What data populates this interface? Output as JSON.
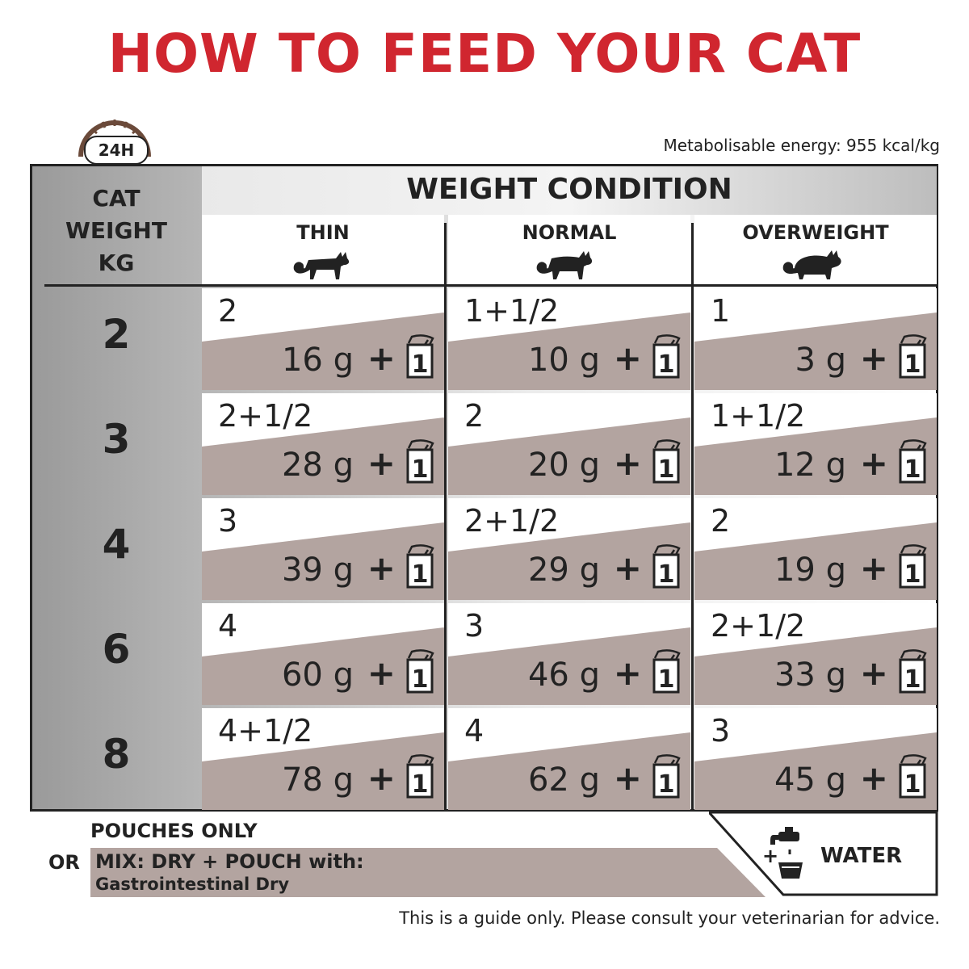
{
  "title": "HOW TO FEED YOUR CAT",
  "energy": "Metabolisable energy: 955 kcal/kg",
  "clock_label": "24H",
  "cat_weight_header": [
    "CAT",
    "WEIGHT",
    "KG"
  ],
  "weight_condition_title": "WEIGHT CONDITION",
  "columns": [
    {
      "label": "THIN",
      "icon": "thin-cat-icon"
    },
    {
      "label": "NORMAL",
      "icon": "normal-cat-icon"
    },
    {
      "label": "OVERWEIGHT",
      "icon": "overweight-cat-icon"
    }
  ],
  "rows": [
    {
      "weight": "2",
      "cells": [
        {
          "pouches": "2",
          "grams": "16 g"
        },
        {
          "pouches": "1+1/2",
          "grams": "10 g"
        },
        {
          "pouches": "1",
          "grams": "3 g"
        }
      ]
    },
    {
      "weight": "3",
      "cells": [
        {
          "pouches": "2+1/2",
          "grams": "28 g"
        },
        {
          "pouches": "2",
          "grams": "20 g"
        },
        {
          "pouches": "1+1/2",
          "grams": "12 g"
        }
      ]
    },
    {
      "weight": "4",
      "cells": [
        {
          "pouches": "3",
          "grams": "39 g"
        },
        {
          "pouches": "2+1/2",
          "grams": "29 g"
        },
        {
          "pouches": "2",
          "grams": "19 g"
        }
      ]
    },
    {
      "weight": "6",
      "cells": [
        {
          "pouches": "4",
          "grams": "60 g"
        },
        {
          "pouches": "3",
          "grams": "46 g"
        },
        {
          "pouches": "2+1/2",
          "grams": "33 g"
        }
      ]
    },
    {
      "weight": "8",
      "cells": [
        {
          "pouches": "4+1/2",
          "grams": "78 g"
        },
        {
          "pouches": "4",
          "grams": "62 g"
        },
        {
          "pouches": "3",
          "grams": "45 g"
        }
      ]
    }
  ],
  "plus_sign": "+",
  "pouch_icon_label": "1",
  "pouches_only": "POUCHES ONLY",
  "or": "OR",
  "mix_line1": "MIX: DRY + POUCH with:",
  "mix_line2": "Gastrointestinal Dry",
  "water_plus": "+",
  "water_label": "WATER",
  "disclaimer": "This is a guide only. Please consult your veterinarian for advice.",
  "colors": {
    "title_red": "#d0262f",
    "band_taupe": "#b3a4a0",
    "ink": "#222222"
  }
}
